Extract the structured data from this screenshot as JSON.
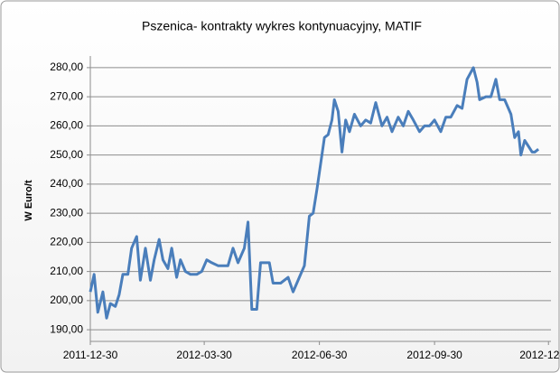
{
  "chart_data": {
    "type": "line",
    "title": "Pszenica- kontrakty wykres kontynuacyjny, MATIF",
    "y_label": "W Euro/t",
    "xlim": [
      "2011-12-30",
      "2013-01-01"
    ],
    "xticks": [
      "2011-12-30",
      "2012-03-30",
      "2012-06-30",
      "2012-09-30",
      {
        "value": "2012-12-30",
        "label": "2012-12-"
      }
    ],
    "ylim": [
      186,
      284
    ],
    "yticks": [
      {
        "value": 190,
        "label": "190,00"
      },
      {
        "value": 200,
        "label": "200,00"
      },
      {
        "value": 210,
        "label": "210,00"
      },
      {
        "value": 220,
        "label": "220,00"
      },
      {
        "value": 230,
        "label": "230,00"
      },
      {
        "value": 240,
        "label": "240,00"
      },
      {
        "value": 250,
        "label": "250,00"
      },
      {
        "value": 260,
        "label": "260,00"
      },
      {
        "value": 270,
        "label": "270,00"
      },
      {
        "value": 280,
        "label": "280,00"
      }
    ],
    "grid": true,
    "x": [
      "2011-12-30",
      "2012-01-02",
      "2012-01-05",
      "2012-01-09",
      "2012-01-12",
      "2012-01-15",
      "2012-01-19",
      "2012-01-22",
      "2012-01-25",
      "2012-01-29",
      "2012-02-01",
      "2012-02-05",
      "2012-02-08",
      "2012-02-12",
      "2012-02-16",
      "2012-02-19",
      "2012-02-23",
      "2012-02-26",
      "2012-03-01",
      "2012-03-04",
      "2012-03-08",
      "2012-03-11",
      "2012-03-15",
      "2012-03-19",
      "2012-03-24",
      "2012-03-28",
      "2012-04-01",
      "2012-04-05",
      "2012-04-10",
      "2012-04-14",
      "2012-04-18",
      "2012-04-22",
      "2012-04-26",
      "2012-05-01",
      "2012-05-04",
      "2012-05-07",
      "2012-05-11",
      "2012-05-14",
      "2012-05-21",
      "2012-05-24",
      "2012-05-30",
      "2012-06-05",
      "2012-06-09",
      "2012-06-14",
      "2012-06-18",
      "2012-06-22",
      "2012-06-25",
      "2012-06-28",
      "2012-07-01",
      "2012-07-04",
      "2012-07-07",
      "2012-07-10",
      "2012-07-12",
      "2012-07-15",
      "2012-07-18",
      "2012-07-21",
      "2012-07-24",
      "2012-07-28",
      "2012-08-02",
      "2012-08-06",
      "2012-08-10",
      "2012-08-14",
      "2012-08-19",
      "2012-08-23",
      "2012-08-27",
      "2012-09-01",
      "2012-09-05",
      "2012-09-09",
      "2012-09-13",
      "2012-09-18",
      "2012-09-22",
      "2012-09-26",
      "2012-09-30",
      "2012-10-05",
      "2012-10-09",
      "2012-10-13",
      "2012-10-18",
      "2012-10-22",
      "2012-10-26",
      "2012-10-31",
      "2012-11-03",
      "2012-11-05",
      "2012-11-10",
      "2012-11-14",
      "2012-11-18",
      "2012-11-21",
      "2012-11-25",
      "2012-11-30",
      "2012-12-03",
      "2012-12-06",
      "2012-12-08",
      "2012-12-11",
      "2012-12-14",
      "2012-12-17",
      "2012-12-19",
      "2012-12-22"
    ],
    "series": [
      {
        "color": "#4a7ebb",
        "values": [
          203,
          209,
          196,
          203,
          194,
          199,
          198,
          202,
          209,
          209,
          218,
          222,
          207,
          218,
          207,
          214,
          221,
          214,
          211,
          218,
          208,
          214,
          210,
          209,
          209,
          210,
          214,
          213,
          212,
          212,
          212,
          218,
          213,
          218,
          227,
          197,
          197,
          213,
          213,
          206,
          206,
          208,
          203,
          208,
          212,
          229,
          230,
          238,
          247,
          256,
          257,
          262,
          269,
          265,
          251,
          262,
          258,
          264,
          260,
          262,
          261,
          268,
          260,
          263,
          258,
          263,
          260,
          265,
          262,
          258,
          260,
          260,
          262,
          258,
          263,
          263,
          267,
          266,
          276,
          280,
          275,
          269,
          270,
          270,
          276,
          269,
          269,
          264,
          256,
          258,
          250,
          255,
          253,
          251,
          251,
          252
        ]
      }
    ]
  }
}
